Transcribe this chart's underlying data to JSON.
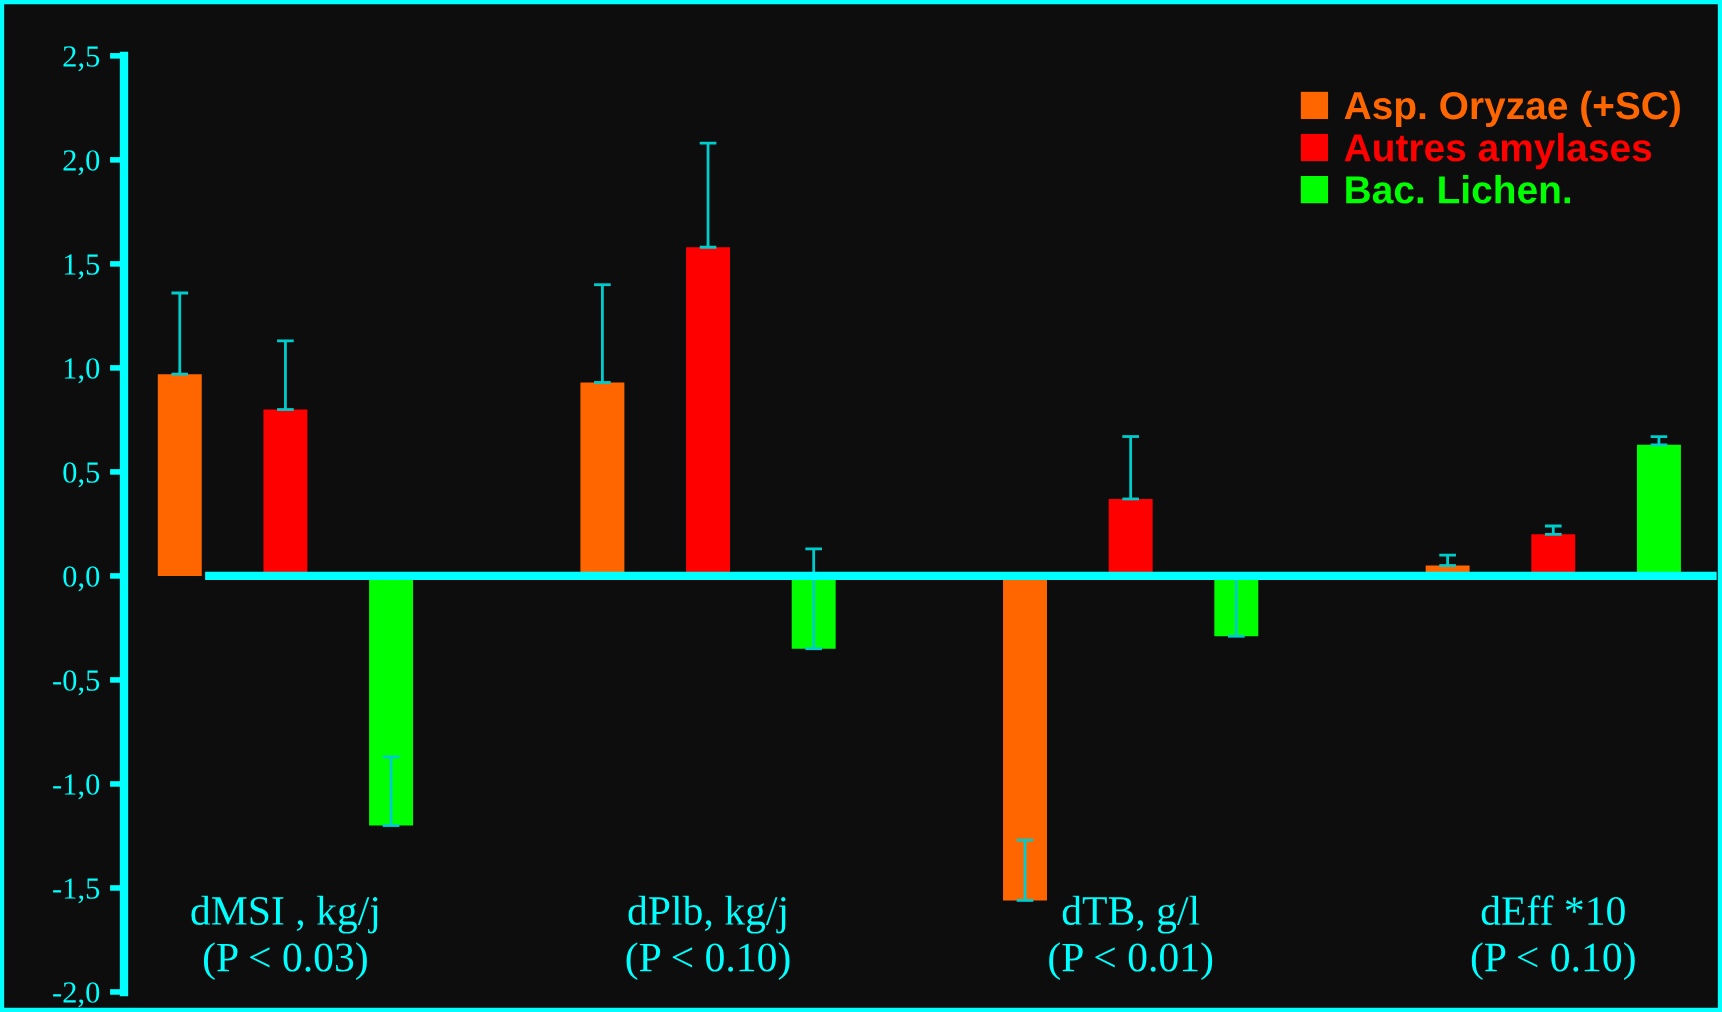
{
  "chart_data": {
    "type": "bar",
    "categories": [
      "dMSI , kg/j\n(P < 0.03)",
      "dPlb, kg/j\n(P < 0.10)",
      "dTB, g/l\n(P < 0.01)",
      "dEff *10\n(P < 0.10)"
    ],
    "series": [
      {
        "name": "Asp. Oryzae (+SC)",
        "color": "#ff6600",
        "values": [
          0.97,
          0.93,
          -1.56,
          0.05
        ],
        "errors": [
          [
            0.97,
            1.36
          ],
          [
            0.93,
            1.4
          ],
          [
            -1.56,
            -1.27
          ],
          [
            0.05,
            0.1
          ]
        ]
      },
      {
        "name": "Autres amylases",
        "color": "#ff0000",
        "values": [
          0.8,
          1.58,
          0.37,
          0.2
        ],
        "errors": [
          [
            0.8,
            1.13
          ],
          [
            1.58,
            2.08
          ],
          [
            0.37,
            0.67
          ],
          [
            0.2,
            0.24
          ]
        ]
      },
      {
        "name": "Bac. Lichen.",
        "color": "#00ff00",
        "values": [
          -1.2,
          -0.35,
          -0.29,
          0.63
        ],
        "errors": [
          [
            -1.2,
            -0.87
          ],
          [
            -0.35,
            0.13
          ],
          [
            -0.29,
            0.0
          ],
          [
            0.63,
            0.67
          ]
        ]
      }
    ],
    "ylim": [
      -2.0,
      2.5
    ],
    "yticks": [
      {
        "value": -2.0,
        "label": "-2,0"
      },
      {
        "value": -1.5,
        "label": "-1,5"
      },
      {
        "value": -1.0,
        "label": "-1,0"
      },
      {
        "value": -0.5,
        "label": "-0,5"
      },
      {
        "value": 0.0,
        "label": "0,0"
      },
      {
        "value": 0.5,
        "label": "0,5"
      },
      {
        "value": 1.0,
        "label": "1,0"
      },
      {
        "value": 1.5,
        "label": "1,5"
      },
      {
        "value": 2.0,
        "label": "2,0"
      },
      {
        "value": 2.5,
        "label": "2,5"
      }
    ],
    "ref_lines": [
      {
        "axis": "y",
        "value": 0,
        "color": "#00ffff"
      }
    ],
    "tick_labels": "y",
    "grid": false,
    "legend": "top right"
  }
}
